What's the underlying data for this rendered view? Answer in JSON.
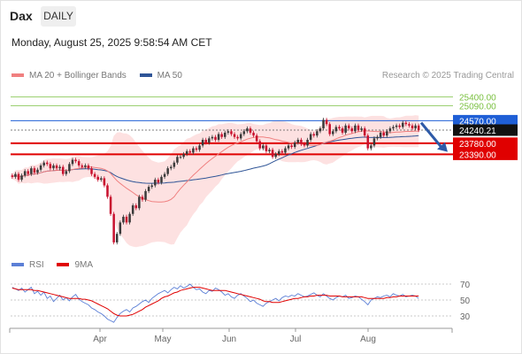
{
  "header": {
    "symbol": "Dax",
    "timeframe": "DAILY",
    "datetime": "Monday, August 25, 2025 9:58:54 AM CET"
  },
  "legend_main": [
    {
      "label": "MA 20 + Bollinger Bands",
      "color": "#f08080"
    },
    {
      "label": "MA 50",
      "color": "#2f5597"
    }
  ],
  "legend_rsi": [
    {
      "label": "RSI",
      "color": "#5b7fd6"
    },
    {
      "label": "9MA",
      "color": "#e00000"
    }
  ],
  "credit": "Research © 2025 Trading Central",
  "chart_data": [
    {
      "type": "candlestick",
      "title": "",
      "x_labels": [
        "Apr",
        "May",
        "Jun",
        "Jul",
        "Aug"
      ],
      "ylim": [
        19800,
        25700
      ],
      "levels": [
        {
          "value": 25400,
          "label": "25400.00",
          "kind": "resistance"
        },
        {
          "value": 25090,
          "label": "25090.00",
          "kind": "resistance"
        },
        {
          "value": 24570,
          "label": "24570.00",
          "kind": "pivot"
        },
        {
          "value": 24240.21,
          "label": "24240.21",
          "kind": "last"
        },
        {
          "value": 23780,
          "label": "23780.00",
          "kind": "support"
        },
        {
          "value": 23390,
          "label": "23390.00",
          "kind": "support"
        }
      ],
      "colors": {
        "up": "#3a3a3a",
        "down": "#c8102e",
        "resistance": "#7bc142",
        "pivot": "#1f5fd6",
        "support": "#e00000",
        "band": "#fde1e1",
        "ma20": "#f08080",
        "ma50": "#2f5597"
      },
      "close": [
        22600,
        22700,
        22500,
        22650,
        22800,
        22700,
        22900,
        22750,
        22850,
        23000,
        23100,
        23050,
        22900,
        23000,
        22900,
        22950,
        22700,
        22800,
        23050,
        23200,
        23150,
        23000,
        22950,
        23000,
        22900,
        22700,
        22600,
        22500,
        22550,
        22300,
        21900,
        21300,
        20300,
        20600,
        21000,
        21200,
        21000,
        21300,
        21600,
        21500,
        21900,
        21800,
        22100,
        22250,
        22300,
        22500,
        22400,
        22600,
        22700,
        22900,
        22950,
        23100,
        23300,
        23300,
        23400,
        23500,
        23450,
        23600,
        23550,
        23700,
        23900,
        23800,
        23950,
        24000,
        23900,
        24100,
        24000,
        24150,
        24200,
        24100,
        24000,
        23950,
        24100,
        24200,
        24300,
        24150,
        24050,
        23850,
        23600,
        23700,
        23500,
        23550,
        23300,
        23400,
        23500,
        23450,
        23600,
        23700,
        23650,
        23800,
        23900,
        23750,
        23700,
        23900,
        24100,
        24050,
        24200,
        24300,
        24600,
        24450,
        24100,
        24200,
        24350,
        24300,
        24150,
        24400,
        24300,
        24200,
        24400,
        24250,
        24300,
        24050,
        23600,
        23700,
        23950,
        24000,
        24150,
        24050,
        24200,
        24300,
        24350,
        24400,
        24350,
        24500,
        24450,
        24400,
        24300,
        24400,
        24240.21
      ],
      "open": [
        22650,
        22600,
        22700,
        22500,
        22650,
        22800,
        22700,
        22900,
        22750,
        22850,
        23000,
        23100,
        23050,
        22900,
        23000,
        22900,
        22950,
        22700,
        22800,
        23050,
        23200,
        23150,
        23000,
        22950,
        23000,
        22900,
        22700,
        22600,
        22500,
        22550,
        22300,
        21900,
        21300,
        20300,
        20600,
        21000,
        21200,
        21000,
        21300,
        21600,
        21500,
        21900,
        21800,
        22100,
        22250,
        22300,
        22500,
        22400,
        22600,
        22700,
        22900,
        22950,
        23100,
        23300,
        23300,
        23400,
        23500,
        23450,
        23600,
        23550,
        23700,
        23900,
        23800,
        23950,
        24000,
        23900,
        24100,
        24000,
        24150,
        24200,
        24100,
        24000,
        23950,
        24100,
        24200,
        24300,
        24150,
        24050,
        23850,
        23600,
        23700,
        23500,
        23550,
        23300,
        23400,
        23500,
        23450,
        23600,
        23700,
        23650,
        23800,
        23900,
        23750,
        23700,
        23900,
        24100,
        24050,
        24200,
        24300,
        24600,
        24450,
        24100,
        24200,
        24350,
        24300,
        24150,
        24400,
        24300,
        24200,
        24400,
        24250,
        24300,
        24050,
        23600,
        23700,
        23950,
        24000,
        24150,
        24050,
        24200,
        24300,
        24350,
        24400,
        24350,
        24500,
        24450,
        24400,
        24300,
        24400
      ]
    },
    {
      "type": "line",
      "title": "",
      "ylim": [
        20,
        80
      ],
      "y_ticks": [
        70,
        50,
        30
      ],
      "series": [
        {
          "name": "RSI",
          "values": [
            66,
            64,
            62,
            65,
            60,
            63,
            66,
            58,
            61,
            56,
            60,
            52,
            55,
            48,
            52,
            56,
            50,
            53,
            49,
            54,
            57,
            51,
            48,
            46,
            44,
            40,
            38,
            35,
            33,
            30,
            26,
            24,
            22,
            28,
            33,
            36,
            38,
            35,
            40,
            42,
            45,
            48,
            50,
            47,
            52,
            55,
            58,
            60,
            62,
            59,
            63,
            66,
            64,
            68,
            65,
            67,
            70,
            66,
            63,
            64,
            60,
            58,
            62,
            61,
            65,
            63,
            60,
            56,
            58,
            54,
            52,
            56,
            58,
            55,
            52,
            48,
            50,
            46,
            44,
            42,
            46,
            48,
            50,
            52,
            49,
            53,
            55,
            54,
            56,
            55,
            58,
            56,
            54,
            55,
            57,
            59,
            56,
            54,
            58,
            55,
            52,
            50,
            53,
            55,
            54,
            56,
            52,
            53,
            55,
            54,
            51,
            48,
            44,
            50,
            52,
            54,
            53,
            55,
            56,
            54,
            58,
            56,
            55,
            57,
            54,
            55,
            56,
            55,
            52
          ]
        },
        {
          "name": "9MA",
          "values": [
            65,
            64,
            63,
            63,
            63,
            63,
            63,
            62,
            62,
            61,
            60,
            59,
            58,
            57,
            56,
            55,
            54,
            53,
            52,
            52,
            52,
            52,
            51,
            51,
            50,
            49,
            47,
            45,
            43,
            41,
            39,
            36,
            33,
            31,
            30,
            30,
            30,
            31,
            32,
            34,
            36,
            38,
            41,
            43,
            45,
            47,
            49,
            52,
            54,
            55,
            57,
            59,
            60,
            62,
            63,
            64,
            65,
            66,
            66,
            66,
            65,
            64,
            63,
            62,
            62,
            62,
            62,
            62,
            61,
            60,
            59,
            58,
            57,
            56,
            55,
            54,
            53,
            52,
            51,
            49,
            48,
            48,
            47,
            47,
            47,
            48,
            49,
            50,
            51,
            52,
            52,
            53,
            54,
            54,
            55,
            55,
            56,
            56,
            56,
            56,
            55,
            55,
            55,
            55,
            54,
            54,
            54,
            54,
            54,
            54,
            54,
            53,
            52,
            52,
            52,
            52,
            52,
            52,
            53,
            53,
            54,
            54,
            55,
            55,
            55,
            55,
            55,
            55,
            55
          ]
        }
      ]
    }
  ]
}
